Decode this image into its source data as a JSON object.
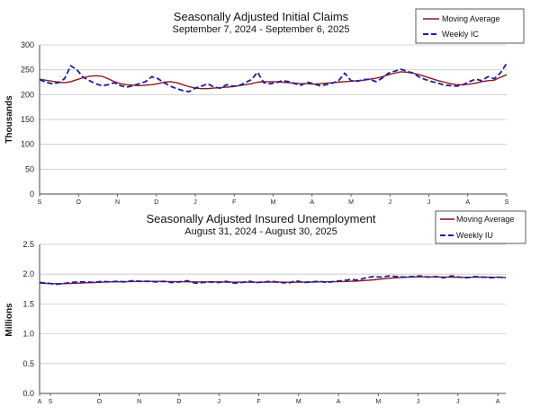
{
  "colors": {
    "moving_average": "#8b1a1a",
    "weekly": "#1c1ca8",
    "grid": "#c8c8c8",
    "axis": "#444444"
  },
  "chart_data": [
    {
      "type": "line",
      "title": "Seasonally Adjusted Initial Claims",
      "subtitle": "September 7, 2024 - September 6, 2025",
      "ylabel": "Thousands",
      "xlabel": "",
      "ylim": [
        0,
        300
      ],
      "yticks": [
        "0",
        "50",
        "100",
        "150",
        "200",
        "250",
        "300"
      ],
      "grid": "horizontal",
      "legend_position": "top-right",
      "month_ticks": [
        "S",
        "O",
        "N",
        "D",
        "J",
        "F",
        "M",
        "A",
        "M",
        "J",
        "J",
        "A",
        "S"
      ],
      "series": [
        {
          "name": "Moving Average",
          "style": "solid",
          "values": [
            231,
            229,
            227,
            225,
            224,
            226,
            230,
            234,
            237,
            238,
            237,
            232,
            226,
            222,
            220,
            219,
            218,
            219,
            220,
            222,
            225,
            226,
            224,
            220,
            216,
            213,
            212,
            212,
            213,
            214,
            215,
            216,
            218,
            220,
            222,
            225,
            226,
            226,
            226,
            225,
            224,
            223,
            222,
            222,
            221,
            222,
            223,
            224,
            225,
            226,
            227,
            228,
            229,
            231,
            233,
            236,
            240,
            243,
            246,
            245,
            243,
            240,
            236,
            232,
            228,
            225,
            222,
            220,
            220,
            221,
            223,
            226,
            228,
            229,
            235,
            240
          ]
        },
        {
          "name": "Weekly IC",
          "style": "dashed",
          "values": [
            230,
            225,
            222,
            224,
            232,
            258,
            250,
            235,
            228,
            222,
            218,
            220,
            224,
            218,
            215,
            218,
            222,
            226,
            236,
            232,
            224,
            217,
            212,
            208,
            206,
            213,
            217,
            222,
            215,
            213,
            220,
            217,
            218,
            224,
            230,
            245,
            224,
            222,
            224,
            228,
            226,
            222,
            219,
            225,
            222,
            218,
            220,
            223,
            228,
            243,
            228,
            227,
            230,
            231,
            226,
            233,
            243,
            247,
            251,
            247,
            243,
            235,
            230,
            226,
            223,
            219,
            218,
            217,
            220,
            226,
            231,
            228,
            236,
            232,
            244,
            263
          ]
        }
      ]
    },
    {
      "type": "line",
      "title": "Seasonally Adjusted Insured Unemployment",
      "subtitle": "August 31, 2024 - August 30, 2025",
      "ylabel": "Millions",
      "xlabel": "",
      "ylim": [
        0,
        2.5
      ],
      "yticks": [
        "0.0",
        "0.5",
        "1.0",
        "1.5",
        "2.0",
        "2.5"
      ],
      "grid": "horizontal",
      "legend_position": "top-right",
      "month_ticks": [
        "A",
        "S",
        "O",
        "N",
        "D",
        "J",
        "F",
        "M",
        "A",
        "M",
        "J",
        "J",
        "A"
      ],
      "series": [
        {
          "name": "Moving Average",
          "style": "solid",
          "values": [
            1.85,
            1.845,
            1.84,
            1.84,
            1.845,
            1.85,
            1.855,
            1.86,
            1.865,
            1.87,
            1.872,
            1.874,
            1.876,
            1.878,
            1.88,
            1.879,
            1.877,
            1.875,
            1.873,
            1.872,
            1.87,
            1.87,
            1.87,
            1.87,
            1.868,
            1.866,
            1.866,
            1.865,
            1.865,
            1.866,
            1.867,
            1.866,
            1.865,
            1.865,
            1.866,
            1.868,
            1.87,
            1.872,
            1.874,
            1.876,
            1.88,
            1.886,
            1.895,
            1.905,
            1.918,
            1.93,
            1.94,
            1.948,
            1.953,
            1.955,
            1.955,
            1.954,
            1.952,
            1.95,
            1.948,
            1.948,
            1.949,
            1.95,
            1.949,
            1.947,
            1.945
          ]
        },
        {
          "name": "Weekly IU",
          "style": "dashed",
          "values": [
            1.86,
            1.85,
            1.83,
            1.84,
            1.86,
            1.87,
            1.87,
            1.86,
            1.88,
            1.87,
            1.88,
            1.87,
            1.89,
            1.88,
            1.88,
            1.87,
            1.88,
            1.86,
            1.87,
            1.89,
            1.85,
            1.86,
            1.87,
            1.86,
            1.88,
            1.85,
            1.86,
            1.88,
            1.86,
            1.87,
            1.88,
            1.86,
            1.85,
            1.89,
            1.86,
            1.87,
            1.88,
            1.86,
            1.88,
            1.89,
            1.91,
            1.9,
            1.94,
            1.96,
            1.95,
            1.97,
            1.96,
            1.95,
            1.96,
            1.97,
            1.95,
            1.96,
            1.94,
            1.97,
            1.95,
            1.94,
            1.96,
            1.95,
            1.94,
            1.95,
            1.94
          ]
        }
      ]
    }
  ]
}
